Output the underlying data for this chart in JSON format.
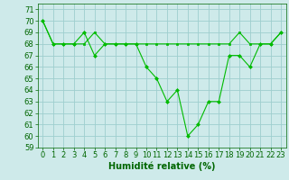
{
  "xlabel": "Humidité relative (%)",
  "background_color": "#ceeaea",
  "grid_color": "#9ecece",
  "line_color": "#00bb00",
  "xlim": [
    -0.5,
    23.5
  ],
  "ylim": [
    59,
    71.5
  ],
  "yticks": [
    59,
    60,
    61,
    62,
    63,
    64,
    65,
    66,
    67,
    68,
    69,
    70,
    71
  ],
  "xticks": [
    0,
    1,
    2,
    3,
    4,
    5,
    6,
    7,
    8,
    9,
    10,
    11,
    12,
    13,
    14,
    15,
    16,
    17,
    18,
    19,
    20,
    21,
    22,
    23
  ],
  "series1_x": [
    0,
    1,
    2,
    3,
    4,
    5,
    6,
    7,
    8,
    9,
    10,
    11,
    12,
    13,
    14,
    15,
    16,
    17,
    18,
    19,
    20,
    21,
    22,
    23
  ],
  "series1_y": [
    70,
    68,
    68,
    68,
    68,
    69,
    68,
    68,
    68,
    68,
    68,
    68,
    68,
    68,
    68,
    68,
    68,
    68,
    68,
    69,
    68,
    68,
    68,
    69
  ],
  "series2_x": [
    0,
    1,
    2,
    3,
    4,
    5,
    6,
    7,
    8,
    9,
    10,
    11,
    12,
    13,
    14,
    15,
    16,
    17,
    18,
    19,
    20,
    21,
    22,
    23
  ],
  "series2_y": [
    70,
    68,
    68,
    68,
    69,
    67,
    68,
    68,
    68,
    68,
    66,
    65,
    63,
    64,
    60,
    61,
    63,
    63,
    67,
    67,
    66,
    68,
    68,
    69
  ],
  "xlabel_fontsize": 7,
  "tick_fontsize": 6
}
